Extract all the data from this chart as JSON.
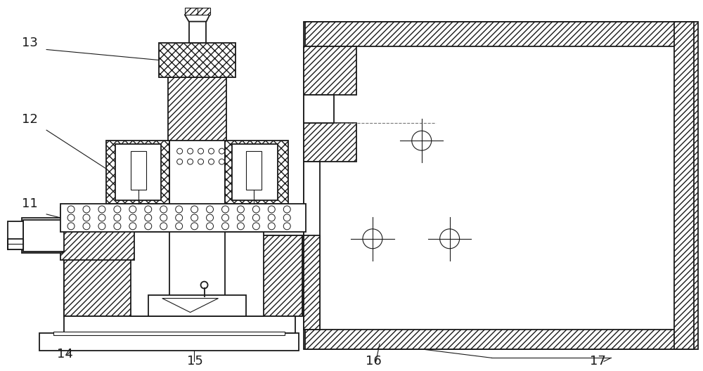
{
  "bg_color": "#ffffff",
  "line_color": "#1a1a1a",
  "figsize": [
    10.0,
    5.28
  ],
  "dpi": 100,
  "label_fontsize": 13
}
